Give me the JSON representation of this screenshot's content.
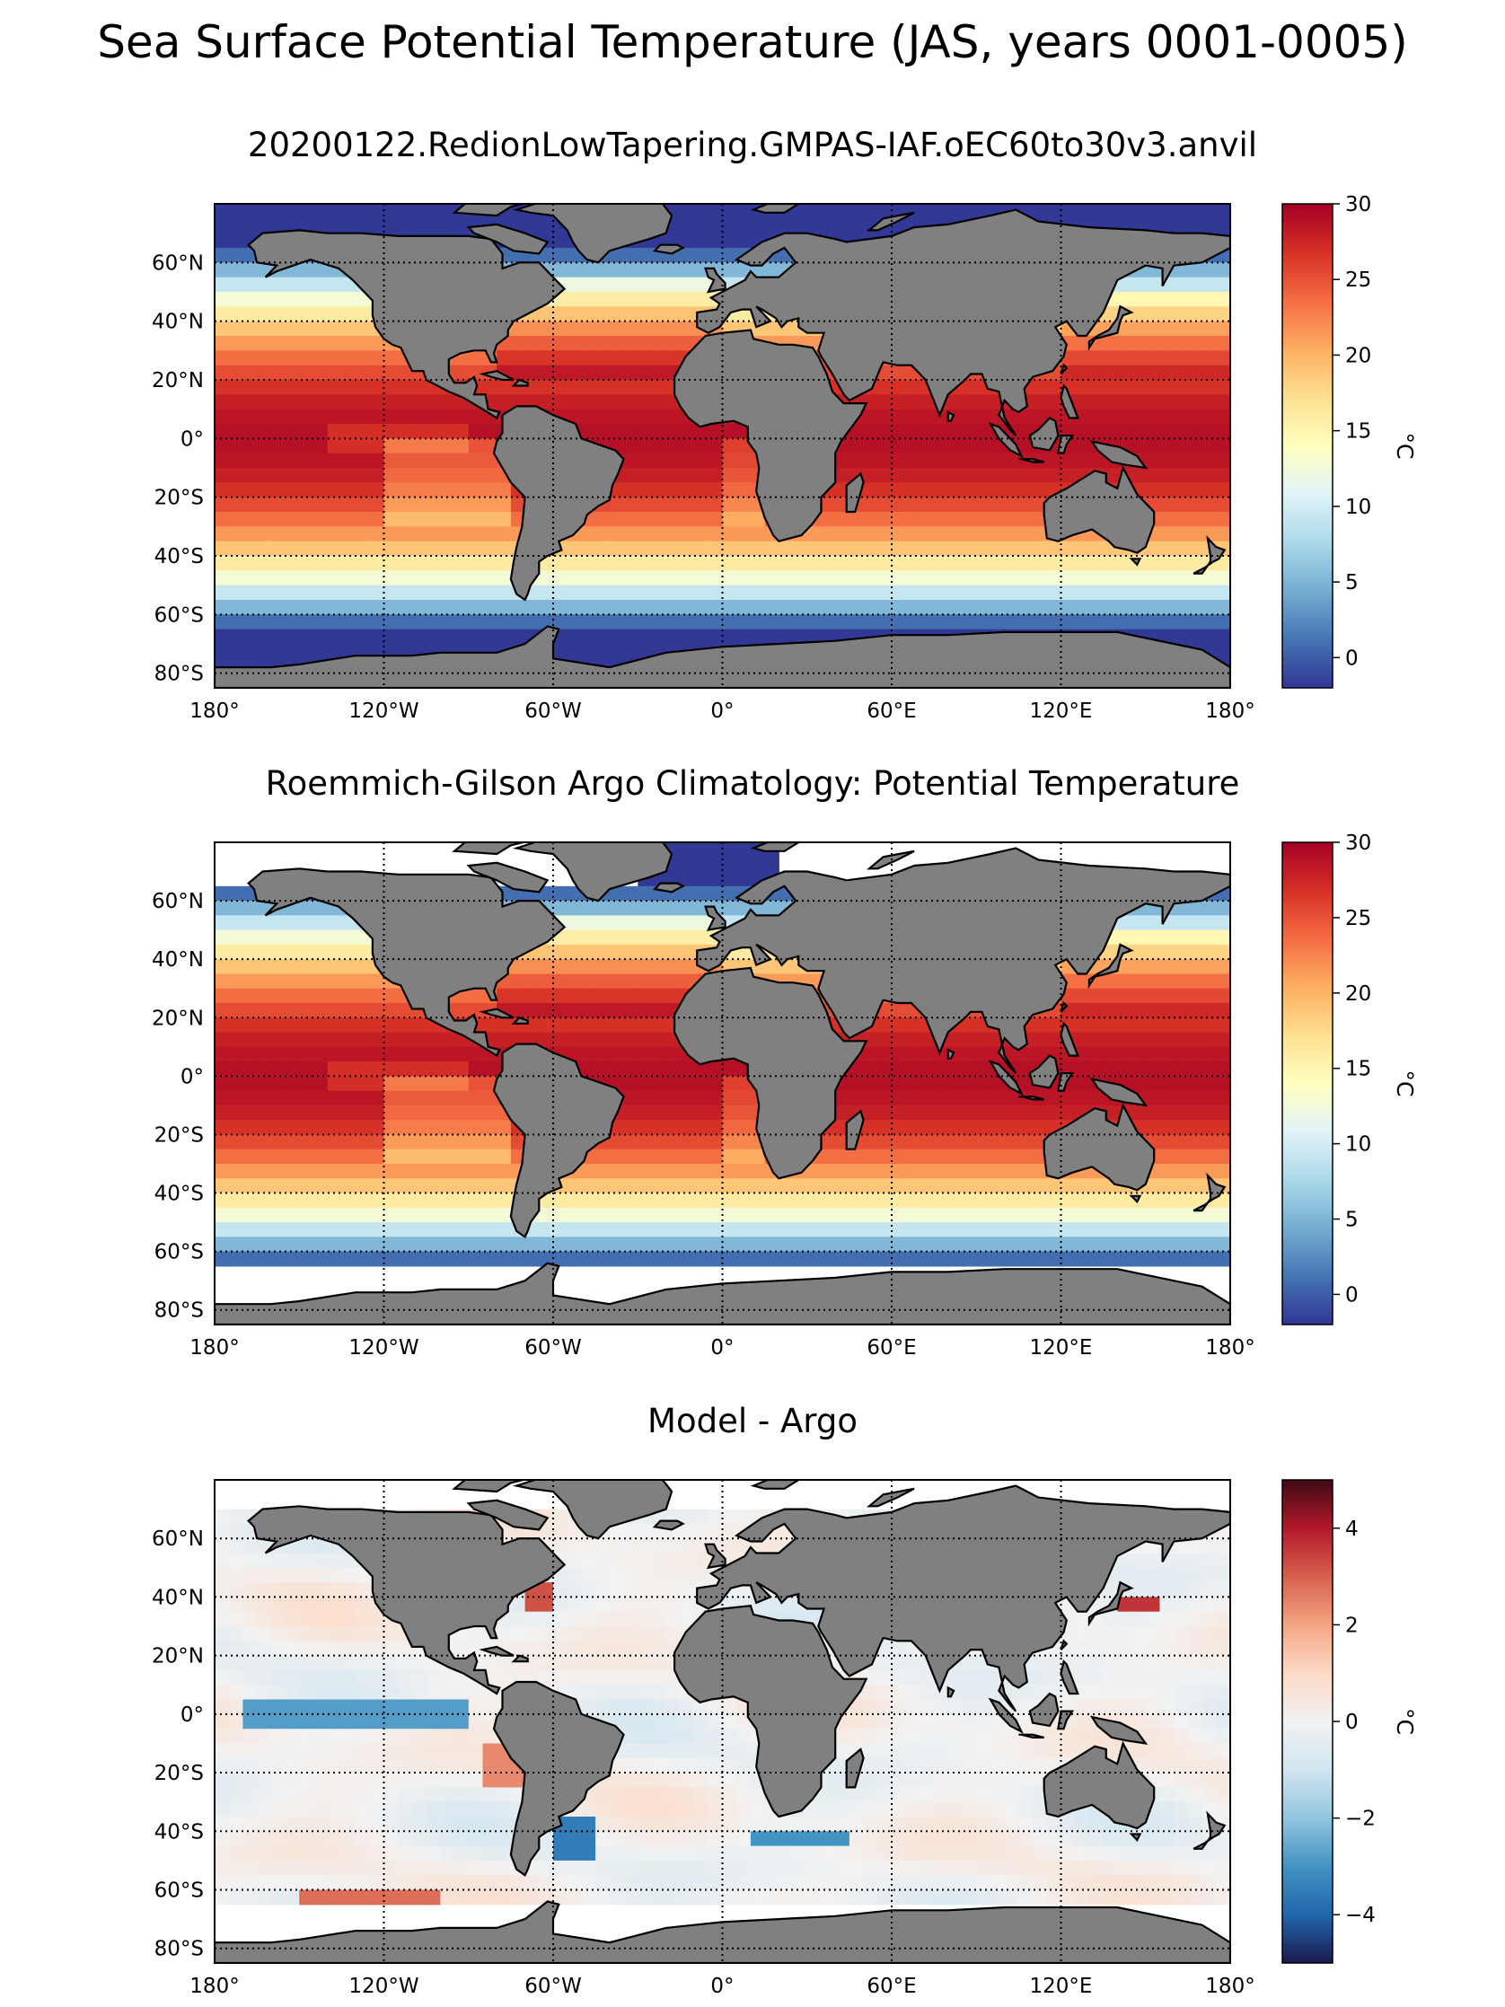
{
  "figure": {
    "title": "Sea Surface Potential Temperature (JAS, years 0001-0005)"
  },
  "axes_labels": {
    "lat_ticks": [
      "60°N",
      "40°N",
      "20°N",
      "0°",
      "20°S",
      "40°S",
      "60°S",
      "80°S"
    ],
    "lon_ticks": [
      "180°",
      "120°W",
      "60°W",
      "0°",
      "60°E",
      "120°E",
      "180°"
    ]
  },
  "chart_data": [
    {
      "type": "heatmap",
      "title": "20200122.RedionLowTapering.GMPAS-IAF.oEC60to30v3.anvil",
      "variable": "sea surface potential temperature",
      "projection": "plate carree",
      "lon_range": [
        -180,
        180
      ],
      "lat_range": [
        -85,
        80
      ],
      "gridlines": [
        -80,
        -60,
        -40,
        -20,
        0,
        20,
        40,
        60
      ],
      "colorbar": {
        "label": "°C",
        "range": [
          -2,
          30
        ],
        "ticks": [
          "0",
          "5",
          "10",
          "15",
          "20",
          "25",
          "30"
        ],
        "colormap": "RdYlBu_r",
        "colors": [
          "#313695",
          "#4575b4",
          "#74add1",
          "#abd9e9",
          "#e0f3f8",
          "#ffffbf",
          "#fee090",
          "#fdae61",
          "#f46d43",
          "#d73027",
          "#a50026"
        ]
      },
      "land_color": "#808080",
      "missing_color": "#ffffff"
    },
    {
      "type": "heatmap",
      "title": "Roemmich-Gilson Argo Climatology: Potential Temperature",
      "variable": "sea surface potential temperature",
      "projection": "plate carree",
      "lon_range": [
        -180,
        180
      ],
      "lat_range": [
        -85,
        80
      ],
      "gridlines": [
        -80,
        -60,
        -40,
        -20,
        0,
        20,
        40,
        60
      ],
      "colorbar": {
        "label": "°C",
        "range": [
          -2,
          30
        ],
        "ticks": [
          "0",
          "5",
          "10",
          "15",
          "20",
          "25",
          "30"
        ],
        "colormap": "RdYlBu_r",
        "colors": [
          "#313695",
          "#4575b4",
          "#74add1",
          "#abd9e9",
          "#e0f3f8",
          "#ffffbf",
          "#fee090",
          "#fdae61",
          "#f46d43",
          "#d73027",
          "#a50026"
        ]
      },
      "land_color": "#808080",
      "missing_color": "#ffffff"
    },
    {
      "type": "heatmap",
      "title": "Model - Argo",
      "variable": "temperature difference",
      "projection": "plate carree",
      "lon_range": [
        -180,
        180
      ],
      "lat_range": [
        -85,
        80
      ],
      "gridlines": [
        -80,
        -60,
        -40,
        -20,
        0,
        20,
        40,
        60
      ],
      "colorbar": {
        "label": "°C",
        "range": [
          -5,
          5
        ],
        "ticks": [
          "−4",
          "−2",
          "0",
          "2",
          "4"
        ],
        "colormap": "RdBu_r",
        "colors": [
          "#1a1a4e",
          "#2166ac",
          "#4393c3",
          "#92c5de",
          "#d1e5f0",
          "#f2f2f2",
          "#fddbc7",
          "#f4a582",
          "#d6604d",
          "#b2182b",
          "#3f0a14"
        ]
      },
      "land_color": "#808080",
      "missing_color": "#ffffff"
    }
  ]
}
